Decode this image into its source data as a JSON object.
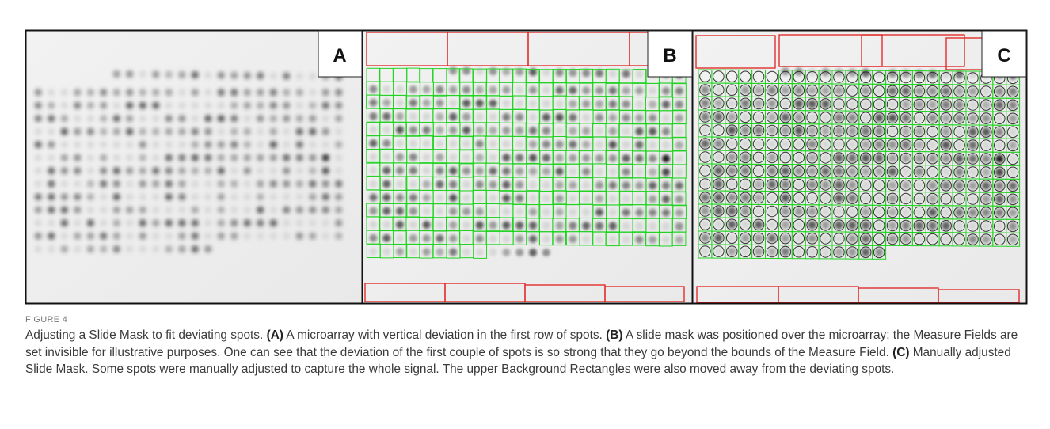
{
  "figure": {
    "panels": [
      {
        "label": "A"
      },
      {
        "label": "B"
      },
      {
        "label": "C"
      }
    ]
  },
  "caption": {
    "figure_label": "FIGURE 4",
    "intro": "Adjusting a Slide Mask to fit deviating spots.",
    "items": [
      {
        "label": "(A)",
        "text": "A microarray with vertical deviation in the first row of spots."
      },
      {
        "label": "(B)",
        "text": "A slide mask was positioned over the microarray; the Measure Fields are set invisible for illustrative purposes. One can see that the deviation of the first couple of spots is so strong that they go beyond the bounds of the Measure Field."
      },
      {
        "label": "(C)",
        "text": "Manually adjusted Slide Mask. Some spots were manually adjusted to capture the whole signal. The upper Background Rectangles were also moved away from the deviating spots."
      }
    ]
  }
}
